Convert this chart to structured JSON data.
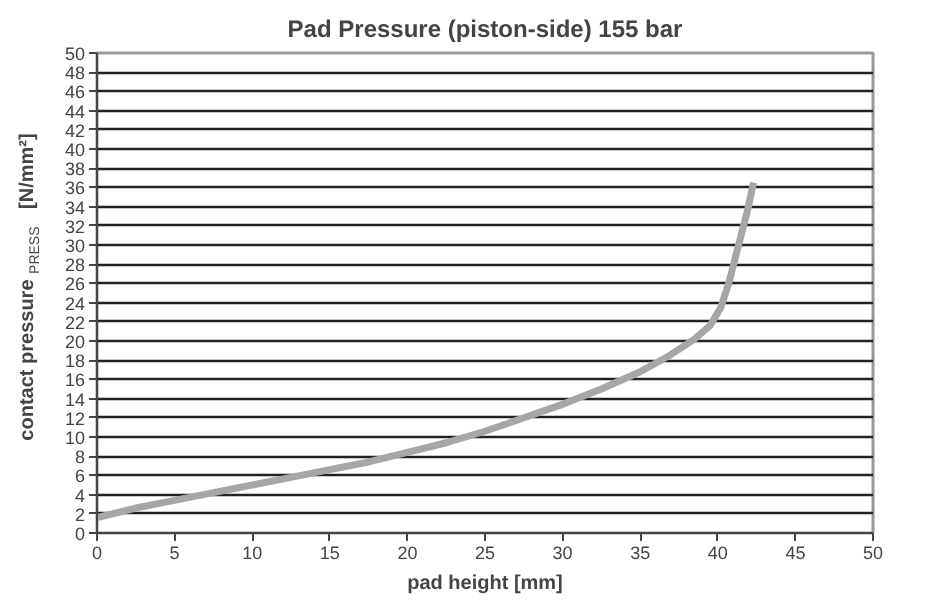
{
  "chart_data": {
    "type": "line",
    "title": "Pad Pressure (piston-side) 155 bar",
    "xlabel": "pad height [mm]",
    "ylabel": "contact pressure $_{PRESS}$ [N/mm²]",
    "x": [
      0,
      2.5,
      5,
      7.5,
      10,
      12.5,
      15,
      17.5,
      20,
      22.5,
      25,
      27.5,
      30,
      32.5,
      35,
      37,
      38.5,
      39.5,
      40.2,
      40.7,
      41.1,
      41.5,
      41.9,
      42.3
    ],
    "series": [
      {
        "color": "#a6a6a6",
        "values": [
          1.6,
          2.6,
          3.4,
          4.2,
          5,
          5.8,
          6.6,
          7.4,
          8.4,
          9.4,
          10.6,
          12,
          13.4,
          15,
          16.8,
          18.6,
          20.2,
          21.6,
          23.5,
          26,
          28.5,
          31,
          33.5,
          36.5
        ]
      }
    ],
    "xlim": [
      0,
      50
    ],
    "ylim": [
      0,
      50
    ],
    "xticks": [
      0,
      5,
      10,
      15,
      20,
      25,
      30,
      35,
      40,
      45,
      50
    ],
    "yticks": [
      0,
      2,
      4,
      6,
      8,
      10,
      12,
      14,
      16,
      18,
      20,
      22,
      24,
      26,
      28,
      30,
      32,
      34,
      36,
      38,
      40,
      42,
      44,
      46,
      48,
      50
    ],
    "grid": "y",
    "marker": "none",
    "line_style": "solid"
  }
}
